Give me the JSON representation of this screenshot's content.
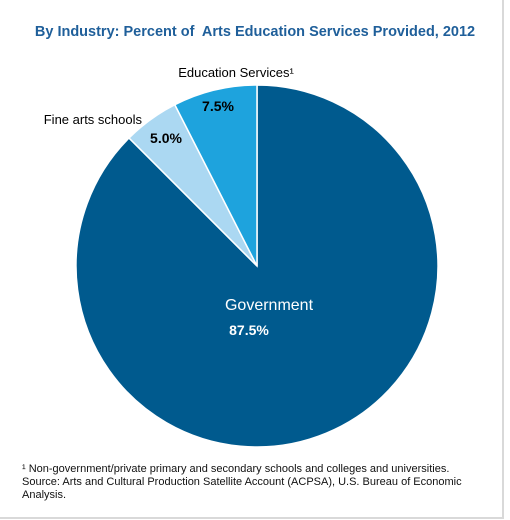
{
  "chart_data": {
    "type": "pie",
    "title": "By Industry: Percent of  Arts Education Services Provided, 2012",
    "slices": [
      {
        "label": "Government",
        "value": 87.5,
        "value_label": "87.5%",
        "color": "#005a8e"
      },
      {
        "label": "Fine arts schools",
        "value": 5.0,
        "value_label": "5.0%",
        "color": "#abd8f2"
      },
      {
        "label": "Education Services¹",
        "value": 7.5,
        "value_label": "7.5%",
        "color": "#1ea3dd"
      }
    ]
  },
  "notes": {
    "footnote": "¹ Non-government/private primary and secondary schools and colleges and universities.",
    "source": "Source: Arts and Cultural Production Satellite Account (ACPSA), U.S. Bureau of Economic Analysis."
  }
}
